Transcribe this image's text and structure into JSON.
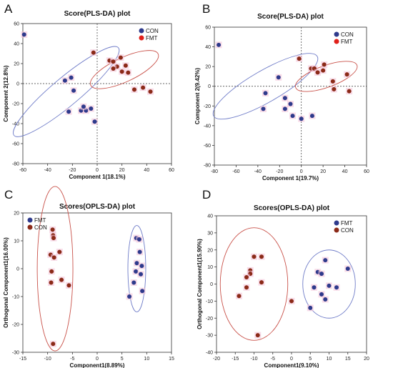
{
  "chart_data": [
    {
      "panel_letter": "A",
      "type": "scatter",
      "title": "Score(PLS-DA) plot",
      "xlabel": "Component 1(18.1%)",
      "ylabel": "Component 2(12.8%)",
      "xlim": [
        -60,
        60
      ],
      "ylim": [
        -80,
        60
      ],
      "xticks": [
        -60,
        -40,
        -20,
        0,
        20,
        40,
        60
      ],
      "yticks": [
        -80,
        -60,
        -40,
        -20,
        0,
        20,
        40,
        60
      ],
      "zero_lines": true,
      "legend_position": "top-right",
      "legend": [
        {
          "label": "CON",
          "color": "#2e3a8c"
        },
        {
          "label": "FMT",
          "color": "#e0201a"
        }
      ],
      "series": [
        {
          "name": "CON",
          "color": "#2e3a8c",
          "points": [
            [
              -59,
              49
            ],
            [
              -26,
              3
            ],
            [
              -21,
              6
            ],
            [
              -23,
              -28
            ],
            [
              -19,
              -7
            ],
            [
              -13,
              -27
            ],
            [
              -9,
              -27
            ],
            [
              -11,
              -23
            ],
            [
              -5,
              -25
            ],
            [
              -2,
              -38
            ]
          ]
        },
        {
          "name": "FMT",
          "color": "#8b2a18",
          "points": [
            [
              -3,
              31
            ],
            [
              10,
              23
            ],
            [
              13,
              22
            ],
            [
              16,
              17
            ],
            [
              19,
              26
            ],
            [
              20,
              12
            ],
            [
              23,
              18
            ],
            [
              25,
              11
            ],
            [
              30,
              -6
            ],
            [
              37,
              -4
            ],
            [
              43,
              -8
            ],
            [
              13,
              15
            ]
          ]
        }
      ],
      "ellipses": [
        {
          "group": "CON",
          "color": "#6f7cc8",
          "cx": -25,
          "cy": -8,
          "rx": 55,
          "ry": 14,
          "angle": -40
        },
        {
          "group": "FMT",
          "color": "#c9524a",
          "cx": 22,
          "cy": 14,
          "rx": 30,
          "ry": 12,
          "angle": -25
        }
      ]
    },
    {
      "panel_letter": "B",
      "type": "scatter",
      "title": "Score(PLS-DA) plot",
      "xlabel": "Component 1(19.7%)",
      "ylabel": "Component 2(9.42%)",
      "xlim": [
        -80,
        60
      ],
      "ylim": [
        -80,
        60
      ],
      "xticks": [
        -80,
        -60,
        -40,
        -20,
        0,
        20,
        40,
        60
      ],
      "yticks": [
        -80,
        -60,
        -40,
        -20,
        0,
        20,
        40,
        60
      ],
      "zero_lines": true,
      "legend_position": "top-right",
      "legend": [
        {
          "label": "CON",
          "color": "#2e3a8c"
        },
        {
          "label": "FMT",
          "color": "#e0201a"
        }
      ],
      "series": [
        {
          "name": "CON",
          "color": "#2e3a8c",
          "points": [
            [
              -76,
              42
            ],
            [
              -21,
              9
            ],
            [
              -33,
              -7
            ],
            [
              -15,
              -12
            ],
            [
              -10,
              -18
            ],
            [
              -35,
              -23
            ],
            [
              -15,
              -23
            ],
            [
              -8,
              -30
            ],
            [
              0,
              -33
            ],
            [
              10,
              -30
            ]
          ]
        },
        {
          "name": "FMT",
          "color": "#8b2a18",
          "points": [
            [
              -2,
              28
            ],
            [
              9,
              18
            ],
            [
              12,
              18
            ],
            [
              15,
              14
            ],
            [
              20,
              16
            ],
            [
              21,
              22
            ],
            [
              29,
              5
            ],
            [
              30,
              -3
            ],
            [
              42,
              12
            ],
            [
              44,
              -5
            ]
          ]
        }
      ],
      "ellipses": [
        {
          "group": "CON",
          "color": "#6f7cc8",
          "cx": -33,
          "cy": 0,
          "rx": 55,
          "ry": 16,
          "angle": -30
        },
        {
          "group": "FMT",
          "color": "#c9524a",
          "cx": 23,
          "cy": 10,
          "rx": 30,
          "ry": 11,
          "angle": -20
        }
      ]
    },
    {
      "panel_letter": "C",
      "type": "scatter",
      "title": "Scores(OPLS-DA) plot",
      "xlabel": "Component1(8.89%)",
      "ylabel": "Orthogonal Component1(16.00%)",
      "xlim": [
        -15,
        15
      ],
      "ylim": [
        -30,
        20
      ],
      "xticks": [
        -15,
        -10,
        -5,
        0,
        5,
        10,
        15
      ],
      "yticks": [
        -30,
        -20,
        -10,
        0,
        10,
        20
      ],
      "zero_lines": false,
      "legend_position": "top-left",
      "legend": [
        {
          "label": "FMT",
          "color": "#2e3a8c"
        },
        {
          "label": "CON",
          "color": "#8b2a18"
        }
      ],
      "series": [
        {
          "name": "FMT",
          "color": "#2e3a8c",
          "points": [
            [
              7.9,
              11
            ],
            [
              8.5,
              10.5
            ],
            [
              8.6,
              6
            ],
            [
              8.0,
              2
            ],
            [
              9.0,
              1
            ],
            [
              7.8,
              -1
            ],
            [
              8.8,
              -2
            ],
            [
              7.4,
              -5
            ],
            [
              9.1,
              -8
            ],
            [
              6.5,
              -10
            ]
          ]
        },
        {
          "name": "CON",
          "color": "#8b2a18",
          "points": [
            [
              -9,
              14
            ],
            [
              -8.9,
              12
            ],
            [
              -8.8,
              11
            ],
            [
              -9.4,
              5
            ],
            [
              -7.6,
              6
            ],
            [
              -8.7,
              4
            ],
            [
              -9.2,
              -1
            ],
            [
              -9.3,
              -5
            ],
            [
              -7.2,
              -4
            ],
            [
              -5.7,
              -6
            ],
            [
              -8.9,
              -27
            ]
          ]
        }
      ],
      "ellipses": [
        {
          "group": "FMT",
          "color": "#6f7cc8",
          "cx": 8,
          "cy": 0,
          "rx": 1.8,
          "ry": 15.5,
          "angle": 0
        },
        {
          "group": "CON",
          "color": "#c9524a",
          "cx": -8.5,
          "cy": 0,
          "rx": 3.6,
          "ry": 29.5,
          "angle": 0
        }
      ]
    },
    {
      "panel_letter": "D",
      "type": "scatter",
      "title": "Scores(OPLS-DA) plot",
      "xlabel": "Component1(9.10%)",
      "ylabel": "Orthogonal Component1(15.90%)",
      "xlim": [
        -20,
        20
      ],
      "ylim": [
        -40,
        40
      ],
      "xticks": [
        -20,
        -15,
        -10,
        -5,
        0,
        5,
        10,
        15,
        20
      ],
      "yticks": [
        -40,
        -30,
        -20,
        -10,
        0,
        10,
        20,
        30,
        40
      ],
      "zero_lines": false,
      "legend_position": "top-right",
      "legend": [
        {
          "label": "FMT",
          "color": "#2e3a8c"
        },
        {
          "label": "CON",
          "color": "#8b2a18"
        }
      ],
      "series": [
        {
          "name": "FMT",
          "color": "#2e3a8c",
          "points": [
            [
              9,
              14
            ],
            [
              7,
              7
            ],
            [
              8,
              6
            ],
            [
              15,
              9
            ],
            [
              6,
              -2
            ],
            [
              10,
              -1
            ],
            [
              12,
              -2
            ],
            [
              8,
              -6
            ],
            [
              9,
              -9
            ],
            [
              5,
              -14
            ]
          ]
        },
        {
          "name": "CON",
          "color": "#8b2a18",
          "points": [
            [
              -10,
              16
            ],
            [
              -8,
              16
            ],
            [
              -11,
              8
            ],
            [
              -11,
              6
            ],
            [
              -12,
              4
            ],
            [
              -8,
              1
            ],
            [
              -12,
              -2
            ],
            [
              -14,
              -7
            ],
            [
              0,
              -10
            ],
            [
              -9,
              -30
            ]
          ]
        }
      ],
      "ellipses": [
        {
          "group": "FMT",
          "color": "#6f7cc8",
          "cx": 10,
          "cy": 0,
          "rx": 7,
          "ry": 20,
          "angle": 0
        },
        {
          "group": "CON",
          "color": "#c9524a",
          "cx": -10,
          "cy": 0,
          "rx": 9,
          "ry": 33,
          "angle": 0
        }
      ]
    }
  ]
}
